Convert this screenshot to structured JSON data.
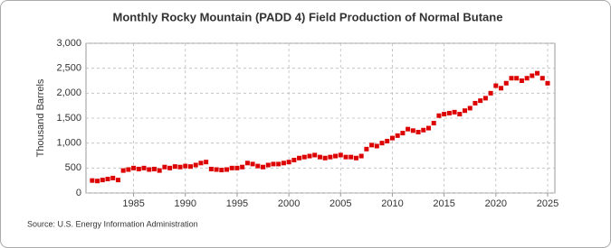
{
  "chart_data": {
    "type": "scatter",
    "title": "Monthly Rocky Mountain (PADD 4) Field Production of Normal Butane",
    "y_label": "Thousand Barrels",
    "source": "Source: U.S. Energy Information Administration",
    "x": [
      1981,
      1981.5,
      1982,
      1982.5,
      1983,
      1983.5,
      1984,
      1984.5,
      1985,
      1985.5,
      1986,
      1986.5,
      1987,
      1987.5,
      1988,
      1988.5,
      1989,
      1989.5,
      1990,
      1990.5,
      1991,
      1991.5,
      1992,
      1992.5,
      1993,
      1993.5,
      1994,
      1994.5,
      1995,
      1995.5,
      1996,
      1996.5,
      1997,
      1997.5,
      1998,
      1998.5,
      1999,
      1999.5,
      2000,
      2000.5,
      2001,
      2001.5,
      2002,
      2002.5,
      2003,
      2003.5,
      2004,
      2004.5,
      2005,
      2005.5,
      2006,
      2006.5,
      2007,
      2007.5,
      2008,
      2008.5,
      2009,
      2009.5,
      2010,
      2010.5,
      2011,
      2011.5,
      2012,
      2012.5,
      2013,
      2013.5,
      2014,
      2014.5,
      2015,
      2015.5,
      2016,
      2016.5,
      2017,
      2017.5,
      2018,
      2018.5,
      2019,
      2019.5,
      2020,
      2020.5,
      2021,
      2021.5,
      2022,
      2022.5,
      2023,
      2023.5,
      2024,
      2024.5,
      2025
    ],
    "series": [
      {
        "name": "Normal Butane",
        "color": "#dd0000",
        "values": [
          250,
          240,
          260,
          280,
          300,
          260,
          450,
          470,
          500,
          480,
          500,
          470,
          480,
          450,
          520,
          500,
          530,
          520,
          540,
          530,
          560,
          600,
          620,
          480,
          470,
          460,
          470,
          500,
          500,
          520,
          600,
          580,
          540,
          520,
          560,
          580,
          580,
          600,
          620,
          660,
          700,
          720,
          740,
          760,
          720,
          700,
          720,
          740,
          760,
          720,
          720,
          700,
          740,
          880,
          960,
          940,
          1000,
          1040,
          1100,
          1150,
          1200,
          1280,
          1250,
          1220,
          1260,
          1300,
          1400,
          1550,
          1580,
          1600,
          1620,
          1580,
          1650,
          1700,
          1800,
          1850,
          1900,
          2000,
          2150,
          2100,
          2200,
          2300,
          2300,
          2250,
          2300,
          2350,
          2400,
          2300,
          2200
        ]
      }
    ],
    "xlim": [
      1980.4,
      2025.7
    ],
    "xticks": [
      1985,
      1990,
      1995,
      2000,
      2005,
      2010,
      2015,
      2020,
      2025
    ],
    "ylim": [
      0,
      3000
    ],
    "yticks": [
      0,
      500,
      {
        "value": 1000,
        "label": "1,000"
      },
      {
        "value": 1500,
        "label": "1,500"
      },
      {
        "value": 2000,
        "label": "2,000"
      },
      {
        "value": 2500,
        "label": "2,500"
      },
      {
        "value": 3000,
        "label": "3,000"
      }
    ],
    "grid": true
  }
}
